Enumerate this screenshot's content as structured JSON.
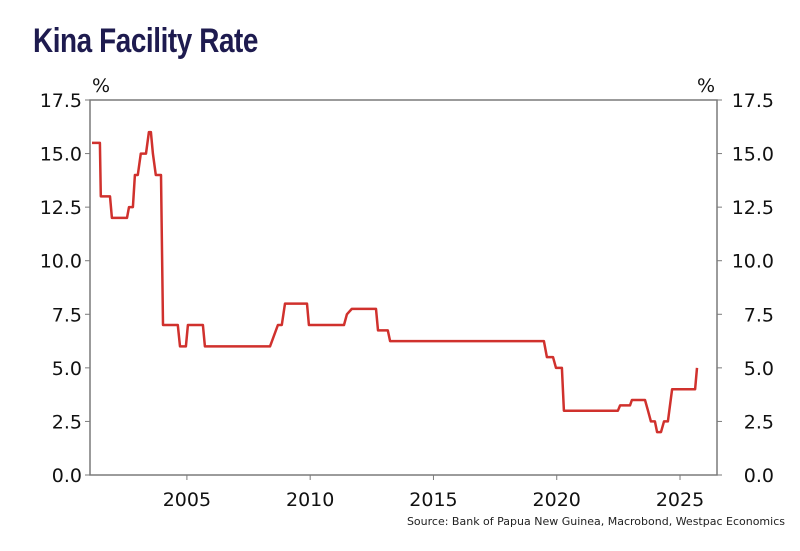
{
  "chart_data": {
    "type": "line",
    "title": "Kina Facility Rate",
    "source": "Source: Bank of Papua New Guinea, Macrobond, Westpac Economics",
    "left_unit": "%",
    "right_unit": "%",
    "xlabel": "",
    "ylabel": "%",
    "xlim": [
      2001.07,
      2026.5
    ],
    "ylim": [
      0,
      17.5
    ],
    "yticks": [
      "0.0",
      "2.5",
      "5.0",
      "7.5",
      "10.0",
      "12.5",
      "15.0",
      "17.5"
    ],
    "ytick_values": [
      0,
      2.5,
      5,
      7.5,
      10,
      12.5,
      15,
      17.5
    ],
    "xticks": [
      "2005",
      "2010",
      "2015",
      "2020",
      "2025"
    ],
    "xtick_values": [
      2005,
      2010,
      2015,
      2020,
      2025
    ],
    "grid": false,
    "line_color": "#d0312d",
    "title_color": "#1e1b4f",
    "series": [
      {
        "name": "Kina Facility Rate",
        "step": true,
        "points": [
          [
            2001.15,
            15.5
          ],
          [
            2001.47,
            15.5
          ],
          [
            2001.51,
            13.0
          ],
          [
            2001.88,
            13.0
          ],
          [
            2001.96,
            12.0
          ],
          [
            2002.57,
            12.0
          ],
          [
            2002.65,
            12.5
          ],
          [
            2002.81,
            12.5
          ],
          [
            2002.89,
            14.0
          ],
          [
            2003.01,
            14.0
          ],
          [
            2003.13,
            15.0
          ],
          [
            2003.34,
            15.0
          ],
          [
            2003.46,
            16.0
          ],
          [
            2003.54,
            16.0
          ],
          [
            2003.62,
            15.0
          ],
          [
            2003.74,
            14.0
          ],
          [
            2003.95,
            14.0
          ],
          [
            2004.03,
            7.0
          ],
          [
            2004.63,
            7.0
          ],
          [
            2004.72,
            6.0
          ],
          [
            2004.96,
            6.0
          ],
          [
            2005.04,
            7.0
          ],
          [
            2005.65,
            7.0
          ],
          [
            2005.73,
            6.0
          ],
          [
            2008.37,
            6.0
          ],
          [
            2008.45,
            6.25
          ],
          [
            2008.69,
            7.0
          ],
          [
            2008.85,
            7.0
          ],
          [
            2008.98,
            8.0
          ],
          [
            2009.87,
            8.0
          ],
          [
            2009.95,
            7.0
          ],
          [
            2011.37,
            7.0
          ],
          [
            2011.49,
            7.5
          ],
          [
            2011.69,
            7.75
          ],
          [
            2012.67,
            7.75
          ],
          [
            2012.75,
            6.75
          ],
          [
            2013.15,
            6.75
          ],
          [
            2013.24,
            6.25
          ],
          [
            2019.48,
            6.25
          ],
          [
            2019.6,
            5.5
          ],
          [
            2019.85,
            5.5
          ],
          [
            2019.97,
            5.0
          ],
          [
            2020.21,
            5.0
          ],
          [
            2020.29,
            3.0
          ],
          [
            2022.48,
            3.0
          ],
          [
            2022.57,
            3.25
          ],
          [
            2022.97,
            3.25
          ],
          [
            2023.05,
            3.5
          ],
          [
            2023.58,
            3.5
          ],
          [
            2023.7,
            3.0
          ],
          [
            2023.82,
            2.5
          ],
          [
            2023.98,
            2.5
          ],
          [
            2024.07,
            2.0
          ],
          [
            2024.23,
            2.0
          ],
          [
            2024.35,
            2.5
          ],
          [
            2024.51,
            2.5
          ],
          [
            2024.68,
            4.0
          ],
          [
            2025.61,
            4.0
          ],
          [
            2025.69,
            5.0
          ]
        ]
      }
    ]
  }
}
